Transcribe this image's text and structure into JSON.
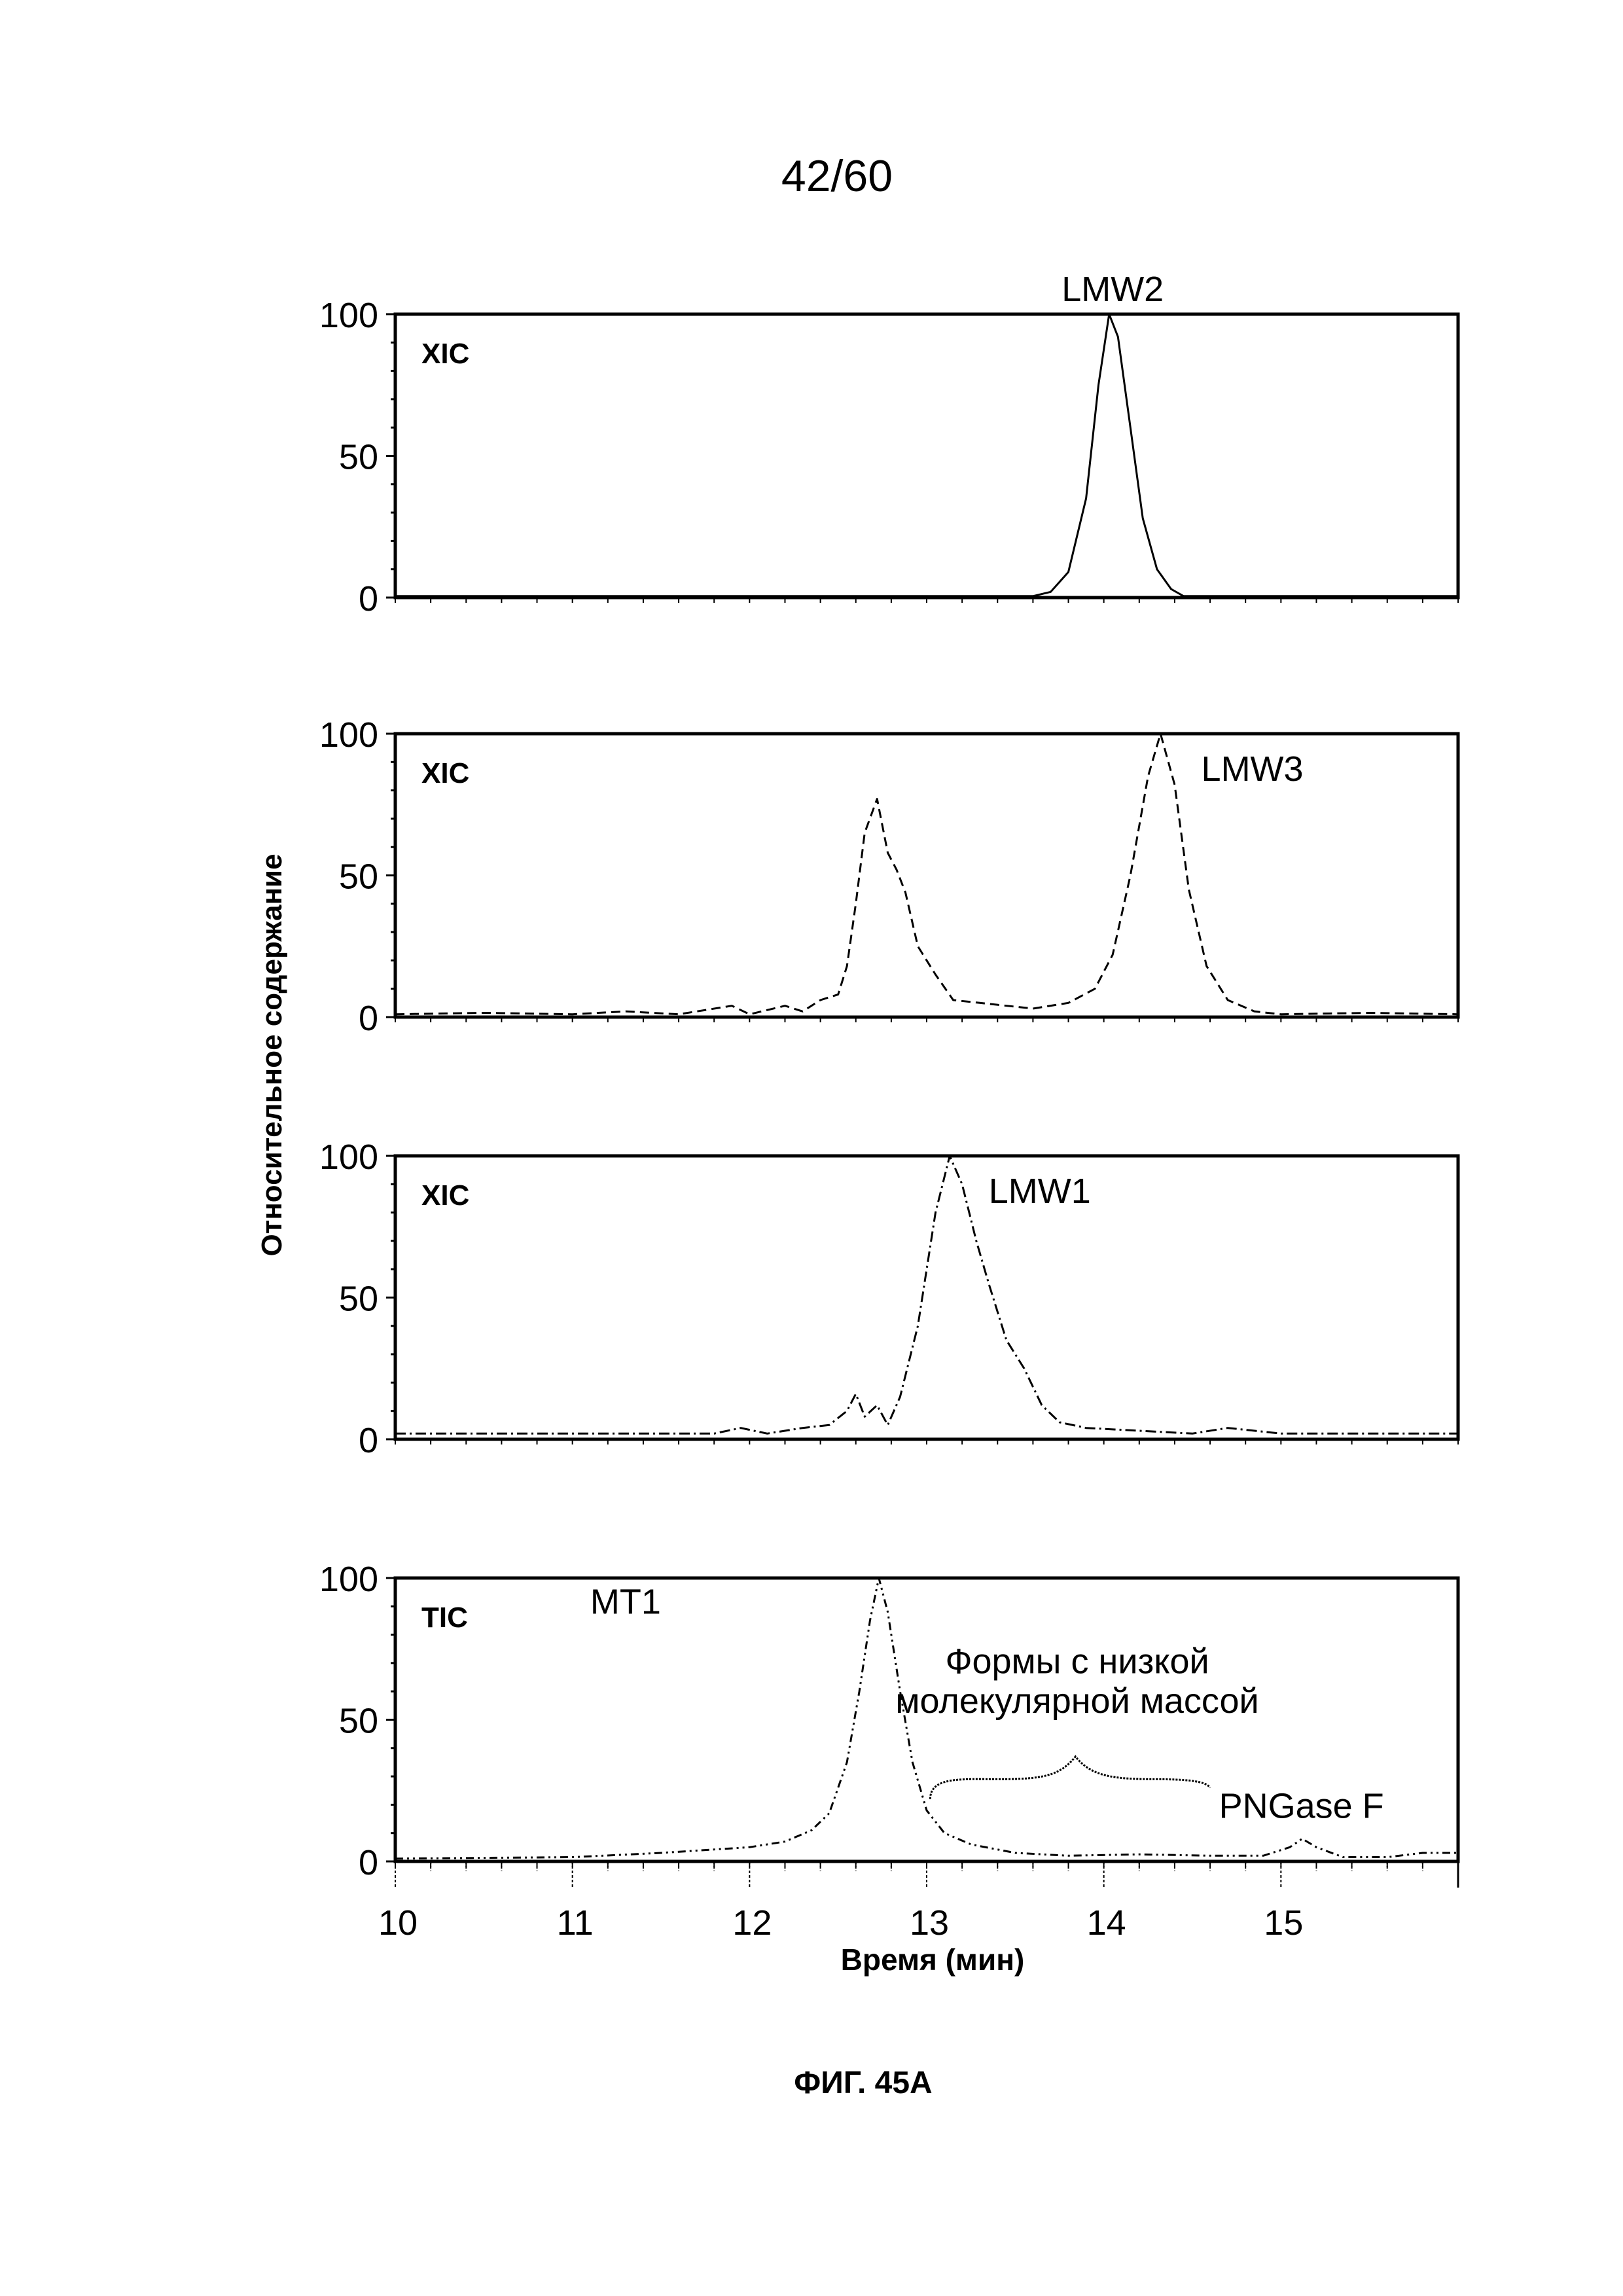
{
  "page_number": "42/60",
  "figure_caption": "ФИГ. 45A",
  "chart_data": {
    "type": "line",
    "ylabel": "Относительное содержание",
    "xlabel": "Время (мин)",
    "xlim": [
      10,
      16
    ],
    "x_ticks": [
      10,
      11,
      12,
      13,
      14,
      15
    ],
    "y_ticks": [
      0,
      50,
      100
    ],
    "ylim": [
      0,
      100
    ],
    "grid": false,
    "panels": [
      {
        "trace_type": "XIC",
        "line_style": "solid",
        "annotations": [
          {
            "text": "LMW2",
            "x": 14.05,
            "y": 100,
            "pos": "above"
          }
        ],
        "points": [
          [
            10,
            0.5
          ],
          [
            13.6,
            0.5
          ],
          [
            13.7,
            2
          ],
          [
            13.8,
            9
          ],
          [
            13.9,
            35
          ],
          [
            13.97,
            75
          ],
          [
            14.03,
            100
          ],
          [
            14.08,
            92
          ],
          [
            14.15,
            60
          ],
          [
            14.22,
            28
          ],
          [
            14.3,
            10
          ],
          [
            14.38,
            3
          ],
          [
            14.45,
            0.5
          ],
          [
            16,
            0.5
          ]
        ]
      },
      {
        "trace_type": "XIC",
        "line_style": "dashed",
        "annotations": [
          {
            "text": "LMW3",
            "x": 14.55,
            "y": 88,
            "pos": "right"
          }
        ],
        "points": [
          [
            10,
            1
          ],
          [
            10.5,
            1.5
          ],
          [
            11,
            1
          ],
          [
            11.3,
            2
          ],
          [
            11.6,
            1
          ],
          [
            11.9,
            4
          ],
          [
            12.0,
            1
          ],
          [
            12.2,
            4
          ],
          [
            12.3,
            2
          ],
          [
            12.4,
            6
          ],
          [
            12.5,
            8
          ],
          [
            12.55,
            18
          ],
          [
            12.6,
            40
          ],
          [
            12.65,
            65
          ],
          [
            12.72,
            77
          ],
          [
            12.78,
            58
          ],
          [
            12.83,
            52
          ],
          [
            12.88,
            44
          ],
          [
            12.95,
            25
          ],
          [
            13.05,
            15
          ],
          [
            13.15,
            6
          ],
          [
            13.3,
            5
          ],
          [
            13.6,
            3
          ],
          [
            13.8,
            5
          ],
          [
            13.95,
            10
          ],
          [
            14.05,
            22
          ],
          [
            14.15,
            50
          ],
          [
            14.25,
            85
          ],
          [
            14.32,
            100
          ],
          [
            14.4,
            82
          ],
          [
            14.48,
            45
          ],
          [
            14.58,
            18
          ],
          [
            14.7,
            6
          ],
          [
            14.85,
            2
          ],
          [
            15.0,
            1
          ],
          [
            15.5,
            1.5
          ],
          [
            16,
            1
          ]
        ]
      },
      {
        "trace_type": "XIC",
        "line_style": "dash-dot",
        "annotations": [
          {
            "text": "LMW1",
            "x": 13.35,
            "y": 88,
            "pos": "right"
          }
        ],
        "points": [
          [
            10,
            2
          ],
          [
            11,
            2
          ],
          [
            11.8,
            2
          ],
          [
            11.95,
            4
          ],
          [
            12.1,
            2
          ],
          [
            12.3,
            4
          ],
          [
            12.45,
            5
          ],
          [
            12.55,
            10
          ],
          [
            12.6,
            16
          ],
          [
            12.65,
            8
          ],
          [
            12.72,
            12
          ],
          [
            12.78,
            5
          ],
          [
            12.85,
            15
          ],
          [
            12.95,
            40
          ],
          [
            13.05,
            80
          ],
          [
            13.13,
            100
          ],
          [
            13.2,
            90
          ],
          [
            13.28,
            70
          ],
          [
            13.35,
            55
          ],
          [
            13.45,
            35
          ],
          [
            13.55,
            25
          ],
          [
            13.65,
            12
          ],
          [
            13.75,
            6
          ],
          [
            13.9,
            4
          ],
          [
            14.2,
            3
          ],
          [
            14.5,
            2
          ],
          [
            14.7,
            4
          ],
          [
            15,
            2
          ],
          [
            16,
            2
          ]
        ]
      },
      {
        "trace_type": "TIC",
        "line_style": "dash-dot-dot",
        "annotations": [
          {
            "text": "MT1",
            "x": 11.3,
            "y": 92,
            "pos": "center"
          },
          {
            "text": "Формы с низкой",
            "x": 13.85,
            "y": 71,
            "pos": "center"
          },
          {
            "text": "молекулярной массой",
            "x": 13.85,
            "y": 57,
            "pos": "center"
          },
          {
            "text": "PNGase F",
            "x": 14.65,
            "y": 20,
            "pos": "left"
          }
        ],
        "points": [
          [
            10,
            1
          ],
          [
            11,
            1.5
          ],
          [
            11.5,
            3
          ],
          [
            12,
            5
          ],
          [
            12.2,
            7
          ],
          [
            12.35,
            11
          ],
          [
            12.45,
            17
          ],
          [
            12.55,
            35
          ],
          [
            12.62,
            60
          ],
          [
            12.68,
            85
          ],
          [
            12.73,
            100
          ],
          [
            12.78,
            88
          ],
          [
            12.85,
            60
          ],
          [
            12.92,
            35
          ],
          [
            13.0,
            18
          ],
          [
            13.1,
            10
          ],
          [
            13.25,
            6
          ],
          [
            13.5,
            3
          ],
          [
            13.8,
            2
          ],
          [
            14.2,
            2.5
          ],
          [
            14.6,
            2
          ],
          [
            14.9,
            2
          ],
          [
            15.05,
            5
          ],
          [
            15.12,
            8
          ],
          [
            15.2,
            5
          ],
          [
            15.35,
            1.5
          ],
          [
            15.6,
            1.5
          ],
          [
            15.8,
            3
          ],
          [
            16,
            3
          ]
        ]
      }
    ]
  },
  "colors": {
    "ink": "#000000",
    "background": "#ffffff"
  }
}
